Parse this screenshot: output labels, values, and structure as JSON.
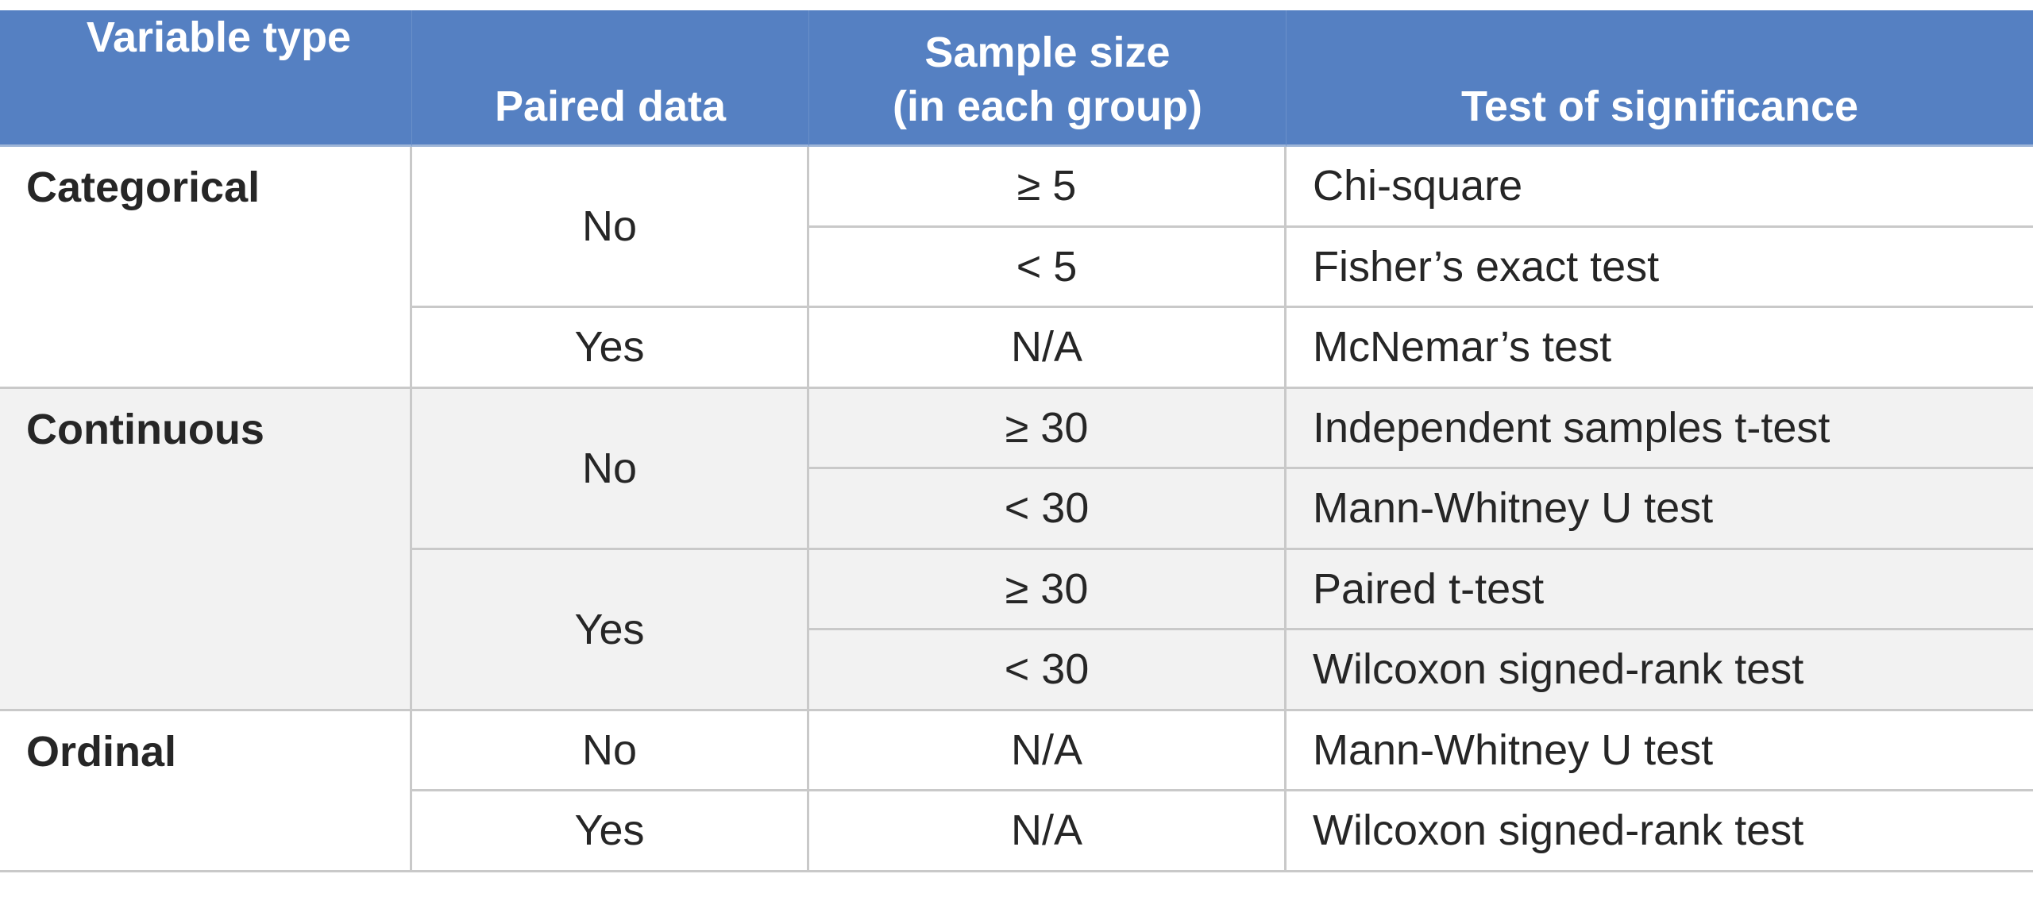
{
  "header": {
    "variable_type": "Variable type",
    "paired_data": "Paired data",
    "sample_size": [
      "Sample size",
      "(in each group)"
    ],
    "test": "Test of significance"
  },
  "groups": [
    {
      "variable": "Categorical",
      "paired": [
        {
          "label": "No",
          "rows": [
            {
              "size": "≥ 5",
              "test": "Chi-square"
            },
            {
              "size": "< 5",
              "test": "Fisher’s exact test"
            }
          ]
        },
        {
          "label": "Yes",
          "rows": [
            {
              "size": "N/A",
              "test": "McNemar’s test"
            }
          ]
        }
      ]
    },
    {
      "variable": "Continuous",
      "paired": [
        {
          "label": "No",
          "rows": [
            {
              "size": "≥ 30",
              "test": "Independent samples t-test"
            },
            {
              "size": "< 30",
              "test": "Mann-Whitney U test"
            }
          ]
        },
        {
          "label": "Yes",
          "rows": [
            {
              "size": "≥ 30",
              "test": "Paired t-test"
            },
            {
              "size": "< 30",
              "test": "Wilcoxon signed-rank test"
            }
          ]
        }
      ]
    },
    {
      "variable": "Ordinal",
      "paired": [
        {
          "label": "No",
          "rows": [
            {
              "size": "N/A",
              "test": "Mann-Whitney U test"
            }
          ]
        },
        {
          "label": "Yes",
          "rows": [
            {
              "size": "N/A",
              "test": "Wilcoxon signed-rank test"
            }
          ]
        }
      ]
    }
  ]
}
